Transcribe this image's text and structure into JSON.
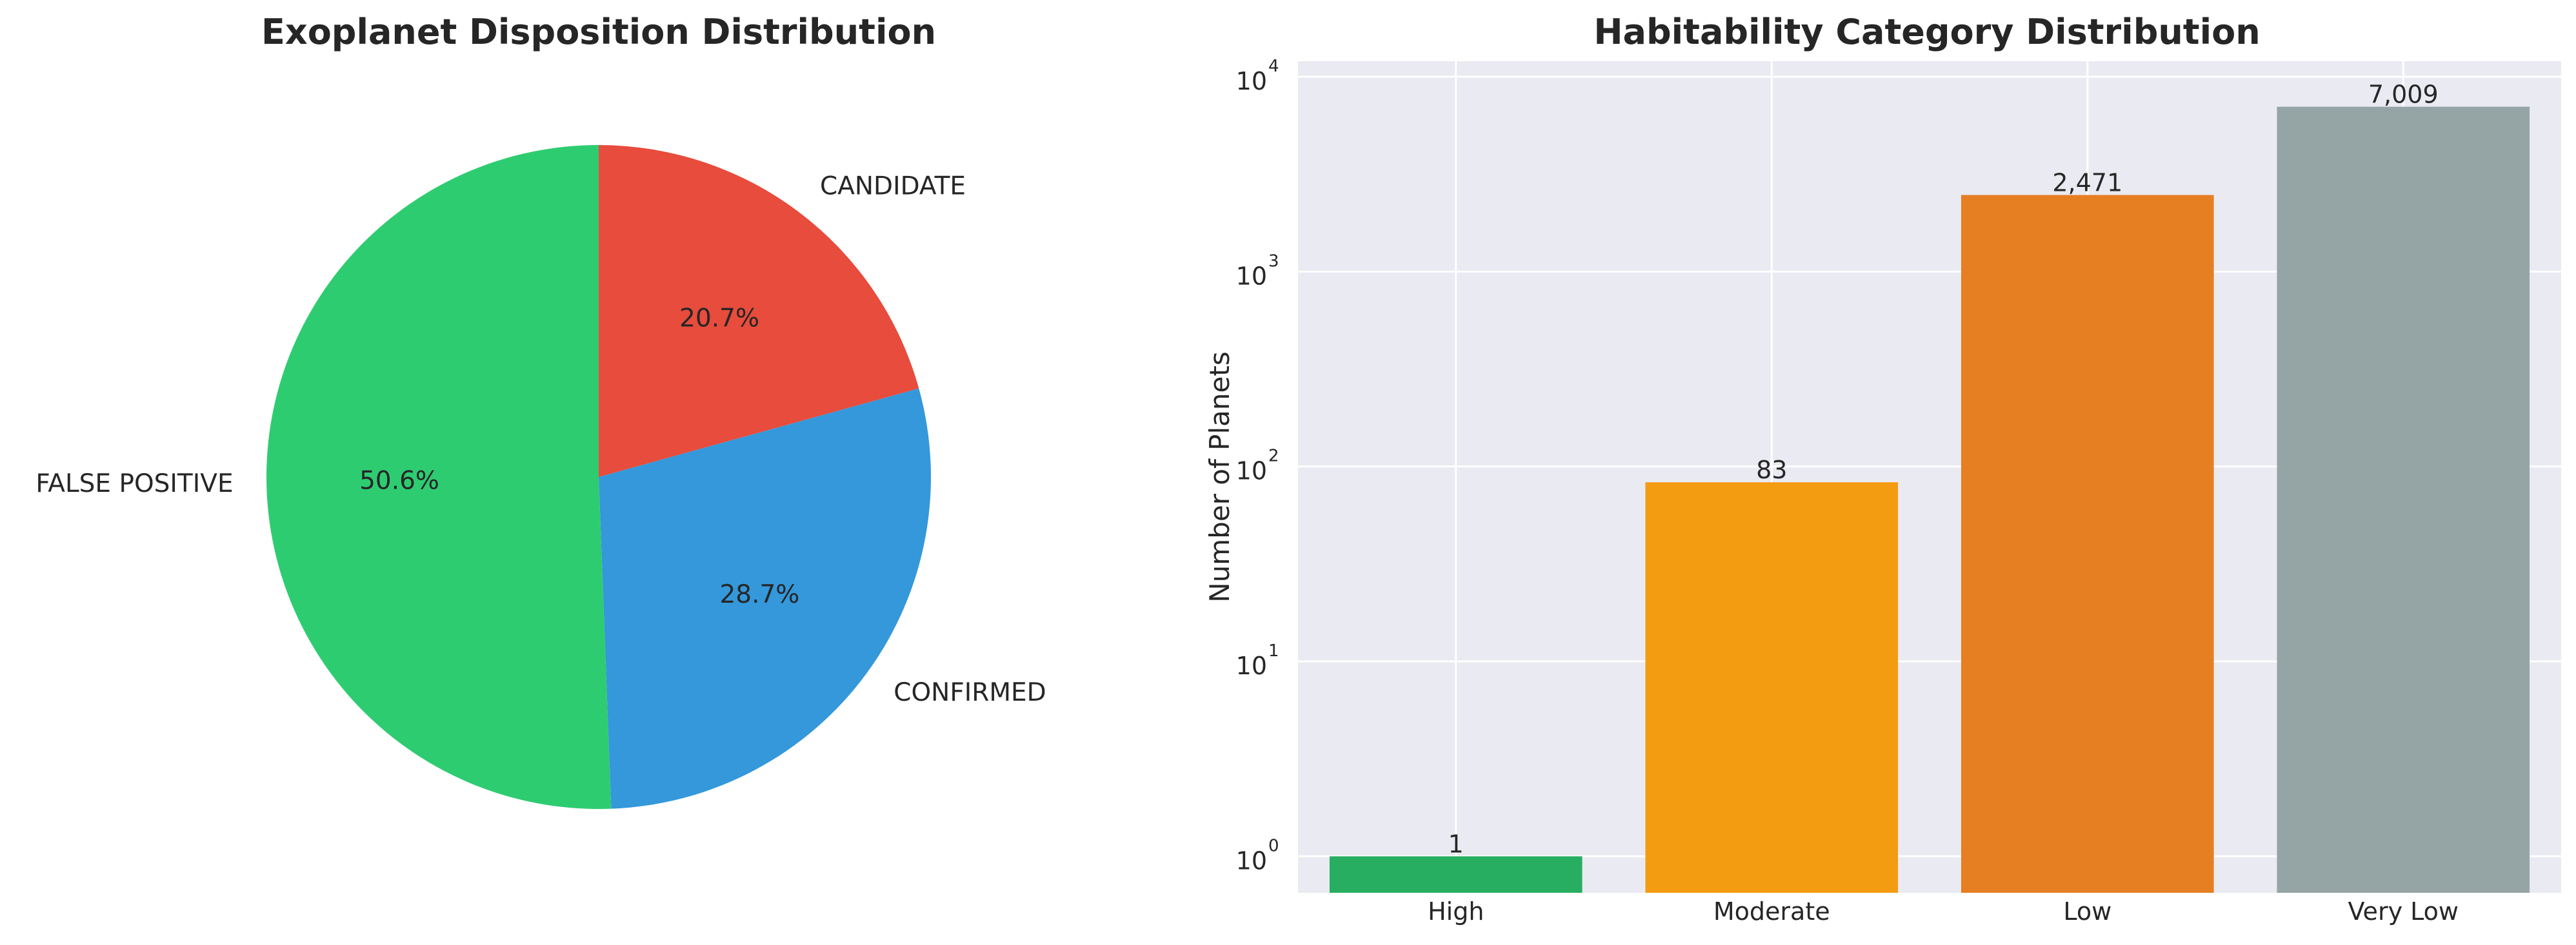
{
  "chart_data": [
    {
      "type": "pie",
      "title": "Exoplanet Disposition Distribution",
      "labels": [
        "CANDIDATE",
        "CONFIRMED",
        "FALSE POSITIVE"
      ],
      "values": [
        20.7,
        28.7,
        50.6
      ],
      "value_labels": [
        "20.7%",
        "28.7%",
        "50.6%"
      ],
      "colors": [
        "#e74c3c",
        "#3498db",
        "#2ecc71"
      ],
      "start_angle": 90,
      "direction": "clockwise"
    },
    {
      "type": "bar",
      "title": "Habitability Category Distribution",
      "categories": [
        "High",
        "Moderate",
        "Low",
        "Very Low"
      ],
      "values": [
        1,
        83,
        2471,
        7009
      ],
      "value_labels": [
        "1",
        "83",
        "2,471",
        "7,009"
      ],
      "colors": [
        "#27ae60",
        "#f39c12",
        "#e67e22",
        "#95a5a6"
      ],
      "xlabel": "",
      "ylabel": "Number of Planets",
      "yscale": "log",
      "ylim": [
        0.65,
        12000
      ],
      "yticks": [
        1,
        10,
        100,
        1000,
        10000
      ],
      "ytick_base": "10",
      "ytick_exponents": [
        "0",
        "1",
        "2",
        "3",
        "4"
      ],
      "grid": true,
      "background": "#eaeaf2"
    }
  ]
}
